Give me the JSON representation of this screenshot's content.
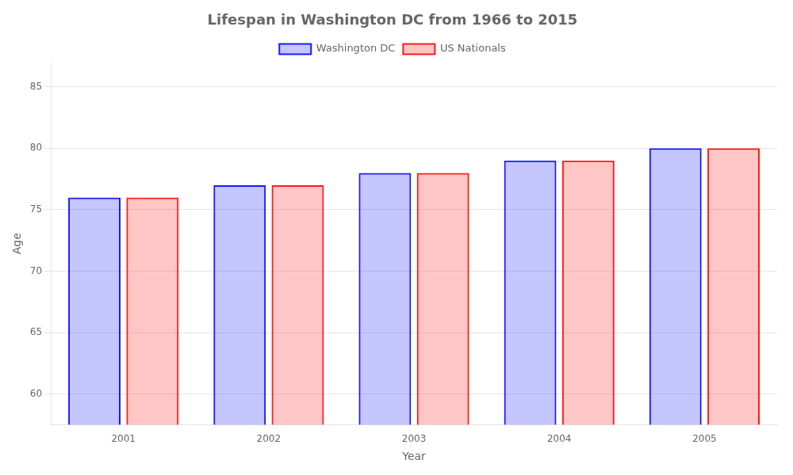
{
  "chart_data": {
    "type": "bar",
    "title": "Lifespan in Washington DC from 1966 to 2015",
    "x_label": "Year",
    "y_label": "Age",
    "categories": [
      "2001",
      "2002",
      "2003",
      "2004",
      "2005"
    ],
    "series": [
      {
        "name": "Washington DC",
        "color": "#1a1aff",
        "values": [
          76,
          77,
          78,
          79,
          80
        ]
      },
      {
        "name": "US Nationals",
        "color": "#ff1a1a",
        "values": [
          76,
          77,
          78,
          79,
          80
        ]
      }
    ],
    "ylim": [
      57.5,
      87
    ],
    "yticks": [
      60,
      65,
      70,
      75,
      80,
      85
    ],
    "grid": true,
    "legend": "top"
  }
}
